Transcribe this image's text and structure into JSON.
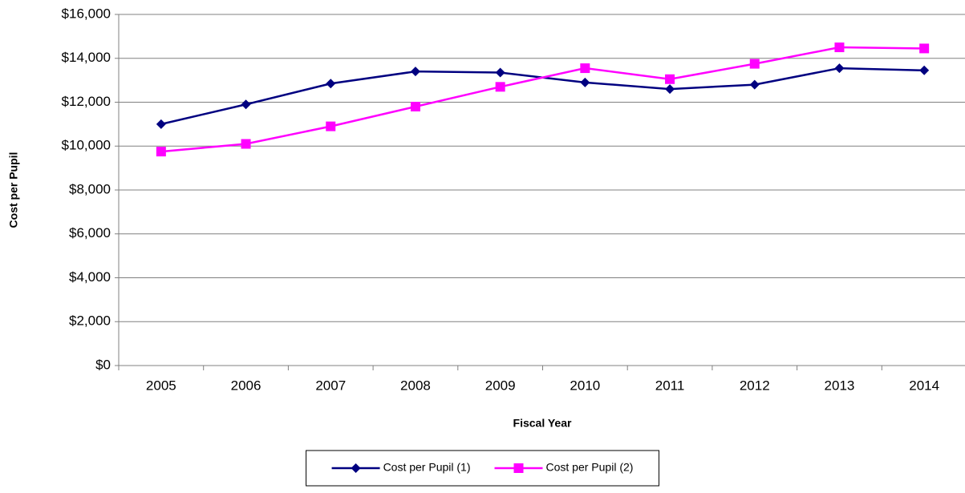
{
  "chart_data": {
    "type": "line",
    "x_label": "Fiscal Year",
    "y_label": "Cost per Pupil",
    "categories": [
      "2005",
      "2006",
      "2007",
      "2008",
      "2009",
      "2010",
      "2011",
      "2012",
      "2013",
      "2014"
    ],
    "series": [
      {
        "name": "Cost per Pupil (1)",
        "color": "#000080",
        "marker": "diamond",
        "values": [
          11000,
          11900,
          12850,
          13400,
          13350,
          12900,
          12600,
          12800,
          13550,
          13450
        ]
      },
      {
        "name": "Cost per Pupil (2)",
        "color": "#FF00FF",
        "marker": "square",
        "values": [
          9750,
          10100,
          10900,
          11800,
          12700,
          13550,
          13050,
          13750,
          14500,
          14450
        ]
      }
    ],
    "ylim": [
      0,
      16000
    ],
    "yticks": [
      {
        "value": 0,
        "label": "$0"
      },
      {
        "value": 2000,
        "label": "$2,000"
      },
      {
        "value": 4000,
        "label": "$4,000"
      },
      {
        "value": 6000,
        "label": "$6,000"
      },
      {
        "value": 8000,
        "label": "$8,000"
      },
      {
        "value": 10000,
        "label": "$10,000"
      },
      {
        "value": 12000,
        "label": "$12,000"
      },
      {
        "value": 14000,
        "label": "$14,000"
      },
      {
        "value": 16000,
        "label": "$16,000"
      }
    ],
    "grid": true,
    "legend": "bottom"
  }
}
